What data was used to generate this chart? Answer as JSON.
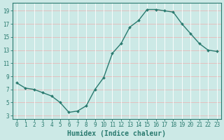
{
  "x": [
    0,
    1,
    2,
    3,
    4,
    5,
    6,
    7,
    8,
    9,
    10,
    11,
    12,
    13,
    14,
    15,
    16,
    17,
    18,
    19,
    20,
    21,
    22,
    23
  ],
  "y": [
    8.0,
    7.2,
    7.0,
    6.5,
    6.0,
    5.0,
    3.5,
    3.7,
    4.5,
    7.0,
    8.8,
    12.5,
    14.0,
    16.5,
    17.5,
    19.2,
    19.2,
    19.0,
    18.8,
    17.0,
    15.5,
    14.0,
    13.0,
    12.8
  ],
  "line_color": "#2a7a6f",
  "marker": "D",
  "marker_size": 2.0,
  "line_width": 1.0,
  "xlabel": "Humidex (Indice chaleur)",
  "xlabel_fontsize": 7,
  "xlabel_fontweight": "bold",
  "ylabel_ticks": [
    3,
    5,
    7,
    9,
    11,
    13,
    15,
    17,
    19
  ],
  "ylim": [
    2.5,
    20.2
  ],
  "xlim": [
    -0.5,
    23.5
  ],
  "xtick_labels": [
    "0",
    "1",
    "2",
    "3",
    "4",
    "5",
    "6",
    "7",
    "8",
    "9",
    "10",
    "11",
    "12",
    "13",
    "14",
    "15",
    "16",
    "17",
    "18",
    "19",
    "20",
    "21",
    "22",
    "23"
  ],
  "bg_color": "#cce9e6",
  "grid_color_h": "#e8b8b8",
  "grid_color_v": "#ffffff",
  "tick_fontsize": 5.5,
  "font_family": "monospace"
}
